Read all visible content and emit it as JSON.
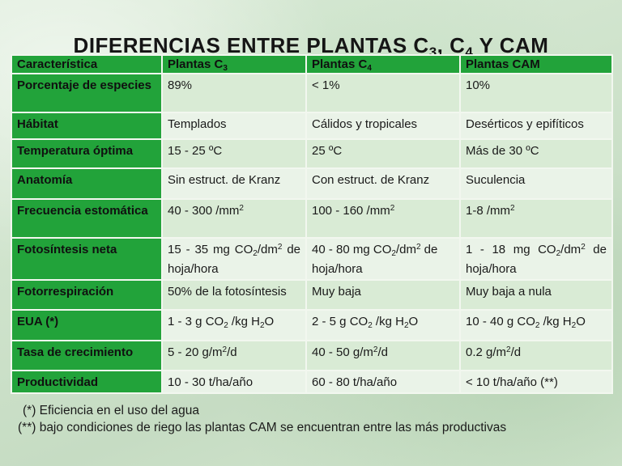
{
  "title": {
    "main": "DIFERENCIAS ENTRE PLANTAS C",
    "sub1": "3",
    "sep1": ", C",
    "sub2": "4",
    "tail": " Y CAM"
  },
  "table": {
    "headers": {
      "feature": "Característica",
      "c3_prefix": "Plantas C",
      "c3_sub": "3",
      "c4_prefix": "Plantas C",
      "c4_sub": "4",
      "cam": "Plantas CAM"
    },
    "rows": [
      {
        "label": "Porcentaje de especies",
        "c3": "89%",
        "c4": "< 1%",
        "cam": "10%"
      },
      {
        "label": "Hábitat",
        "c3": "Templados",
        "c4": "Cálidos y tropicales",
        "cam": "Desérticos y epifíticos"
      },
      {
        "label": "Temperatura óptima",
        "c3": "15 - 25 ºC",
        "c4": "25 ºC",
        "cam": "Más de 30 ºC"
      },
      {
        "label": "Anatomía",
        "c3": "Sin estruct. de Kranz",
        "c4": "Con estruct. de Kranz",
        "cam": "Suculencia"
      },
      {
        "label": "Frecuencia estomática",
        "c3_a": "40 - 300 /mm",
        "c3_sup": "2",
        "c4_a": "100 - 160 /mm",
        "c4_sup": "2",
        "cam_a": "1-8 /mm",
        "cam_sup": "2"
      },
      {
        "label": "Fotosíntesis neta",
        "c3_a": "15 - 35 mg CO",
        "c3_sub": "2",
        "c3_b": "/dm",
        "c3_sup": "2",
        "c3_c": " de hoja/hora",
        "c4_a": "40 - 80 mg CO",
        "c4_sub": "2",
        "c4_b": "/dm",
        "c4_sup": "2",
        "c4_c": " de hoja/hora",
        "cam_a": "1 - 18 mg CO",
        "cam_sub": "2",
        "cam_b": "/dm",
        "cam_sup": "2",
        "cam_c": " de hoja/hora"
      },
      {
        "label": "Fotorrespiración",
        "c3": "50% de la fotosíntesis",
        "c4": "Muy baja",
        "cam": "Muy baja a nula"
      },
      {
        "label": "EUA (*)",
        "c3_a": "1 - 3 g CO",
        "c3_sub": "2",
        "c3_b": " /kg H",
        "c3_sub2": "2",
        "c3_c": "O",
        "c4_a": "2 - 5 g CO",
        "c4_sub": "2",
        "c4_b": " /kg H",
        "c4_sub2": "2",
        "c4_c": "O",
        "cam_a": "10 - 40 g CO",
        "cam_sub": "2",
        "cam_b": " /kg H",
        "cam_sub2": "2",
        "cam_c": "O"
      },
      {
        "label": "Tasa de crecimiento",
        "c3_a": "5 - 20 g/m",
        "c3_sup": "2",
        "c3_b": "/d",
        "c4_a": "40 - 50 g/m",
        "c4_sup": "2",
        "c4_b": "/d",
        "cam_a": "0.2 g/m",
        "cam_sup": "2",
        "cam_b": "/d"
      },
      {
        "label": "Productividad",
        "c3": "10 - 30 t/ha/año",
        "c4": "60 - 80 t/ha/año",
        "cam": "< 10 t/ha/año (**)"
      }
    ]
  },
  "footnotes": {
    "note1": "(*) Eficiencia en el uso del agua",
    "note2": "(**) bajo condiciones de riego las plantas CAM se encuentran entre las más productivas"
  },
  "colors": {
    "header_green": "#22a33a",
    "row_light": "#eaf3e8",
    "row_mid": "#d9ebd5",
    "background": "#cfe3cc"
  }
}
